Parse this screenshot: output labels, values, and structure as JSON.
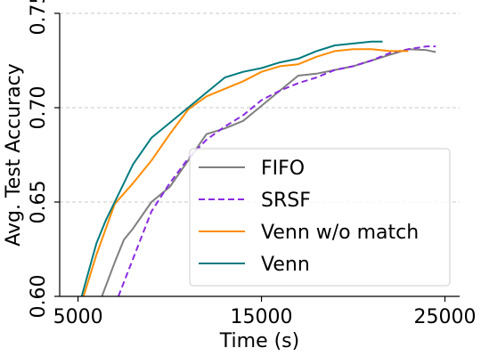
{
  "chart_data": {
    "type": "line",
    "xlabel": "Time (s)",
    "ylabel": "Avg. Test Accuracy",
    "xlim": [
      4000,
      25800
    ],
    "ylim": [
      0.6,
      0.75
    ],
    "xticks": [
      5000,
      15000,
      25000
    ],
    "yticks": [
      0.6,
      0.65,
      0.7,
      0.75
    ],
    "xtick_labels": [
      "5000",
      "15000",
      "25000"
    ],
    "ytick_labels": [
      "0.60",
      "0.65",
      "0.70",
      "0.75"
    ],
    "grid": "horizontal-dashed",
    "legend_position": "lower-right",
    "series": [
      {
        "name": "FIFO",
        "color": "#7f7f7f",
        "dash": "solid",
        "x": [
          6300,
          7000,
          7500,
          8000,
          9000,
          10000,
          11000,
          12000,
          13000,
          14000,
          15000,
          16000,
          17000,
          18000,
          19000,
          20000,
          21000,
          22000,
          23000,
          24000,
          24500
        ],
        "y": [
          0.6,
          0.618,
          0.63,
          0.636,
          0.65,
          0.658,
          0.672,
          0.686,
          0.689,
          0.693,
          0.701,
          0.709,
          0.717,
          0.718,
          0.72,
          0.722,
          0.725,
          0.728,
          0.731,
          0.7305,
          0.7295
        ]
      },
      {
        "name": "SRSF",
        "color": "#8a2be2",
        "dash": "dashed",
        "x": [
          7200,
          8000,
          9000,
          10000,
          11000,
          12000,
          13000,
          14000,
          15000,
          16000,
          17000,
          18000,
          19000,
          20000,
          21000,
          22000,
          23000,
          24000,
          24500
        ],
        "y": [
          0.6,
          0.62,
          0.645,
          0.66,
          0.673,
          0.683,
          0.69,
          0.696,
          0.704,
          0.709,
          0.713,
          0.716,
          0.72,
          0.722,
          0.725,
          0.729,
          0.731,
          0.7325,
          0.7325
        ]
      },
      {
        "name": "Venn w/o match",
        "color": "#ff8c00",
        "dash": "solid",
        "x": [
          5300,
          6000,
          7000,
          8000,
          9000,
          10000,
          11000,
          12000,
          13000,
          14000,
          15000,
          16000,
          17000,
          18000,
          19000,
          20000,
          21000,
          22000,
          23000
        ],
        "y": [
          0.6,
          0.622,
          0.649,
          0.66,
          0.672,
          0.686,
          0.699,
          0.706,
          0.71,
          0.714,
          0.719,
          0.722,
          0.723,
          0.727,
          0.73,
          0.731,
          0.731,
          0.73,
          0.73
        ]
      },
      {
        "name": "Venn",
        "color": "#007b7f",
        "dash": "solid",
        "x": [
          5200,
          6000,
          6500,
          7000,
          8000,
          9000,
          10000,
          11000,
          12000,
          13000,
          14000,
          15000,
          16000,
          17000,
          18000,
          19000,
          20000,
          21000,
          21600
        ],
        "y": [
          0.6,
          0.628,
          0.64,
          0.65,
          0.67,
          0.684,
          0.692,
          0.7,
          0.708,
          0.716,
          0.719,
          0.721,
          0.724,
          0.726,
          0.73,
          0.733,
          0.734,
          0.735,
          0.735
        ]
      }
    ]
  }
}
